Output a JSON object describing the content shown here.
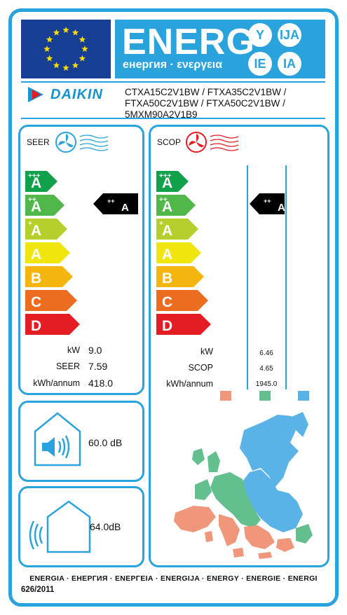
{
  "header": {
    "energ_title": "ENERG",
    "energ_subtitle": "енергия · ενεργεια",
    "suffixes": [
      "Y",
      "IJA",
      "IE",
      "IA"
    ],
    "brand": "DAIKIN",
    "models": [
      "CTXA15C2V1BW / FTXA35C2V1BW /",
      "FTXA50C2V1BW / FTXA50C2V1BW /",
      "5MXM90A2V1B9"
    ],
    "eu_flag_color": "#163e93",
    "accent_color": "#2aa3dc"
  },
  "classes": [
    {
      "label": "A",
      "sup": "+++",
      "color": "#12a14b"
    },
    {
      "label": "A",
      "sup": "++",
      "color": "#4fb848"
    },
    {
      "label": "A",
      "sup": "+",
      "color": "#b6cf2d"
    },
    {
      "label": "A",
      "sup": "",
      "color": "#f0e50c"
    },
    {
      "label": "B",
      "sup": "",
      "color": "#f5b50f"
    },
    {
      "label": "C",
      "sup": "",
      "color": "#ec6d20"
    },
    {
      "label": "D",
      "sup": "",
      "color": "#e31d23"
    }
  ],
  "seer": {
    "title": "SEER",
    "icon": "cooling-fan-icon",
    "rating": {
      "label": "A",
      "sup": "++"
    },
    "rows": [
      {
        "label": "kW",
        "value": "9.0"
      },
      {
        "label": "SEER",
        "value": "7.59"
      },
      {
        "label": "kWh/annum",
        "value": "418.0"
      }
    ]
  },
  "scop": {
    "title": "SCOP",
    "icon": "heating-fan-icon",
    "rating": {
      "label": "A",
      "sup": "++"
    },
    "rows": [
      {
        "label": "kW",
        "value": "6.46"
      },
      {
        "label": "SCOP",
        "value": "4.65"
      },
      {
        "label": "kWh/annum",
        "value": "1945.0"
      }
    ],
    "climate_colors": [
      "#f0967a",
      "#63c08e",
      "#59b3e6"
    ]
  },
  "noise": {
    "indoor": "60.0 dB",
    "outdoor": "64.0dB"
  },
  "footer": {
    "energy_words": "ENERGIA · ЕНЕРГИЯ · ΕΝΕΡΓΕΙΑ · ENERGIJA · ENERGY · ENERGIE · ENERGI",
    "regulation": "626/2011"
  }
}
